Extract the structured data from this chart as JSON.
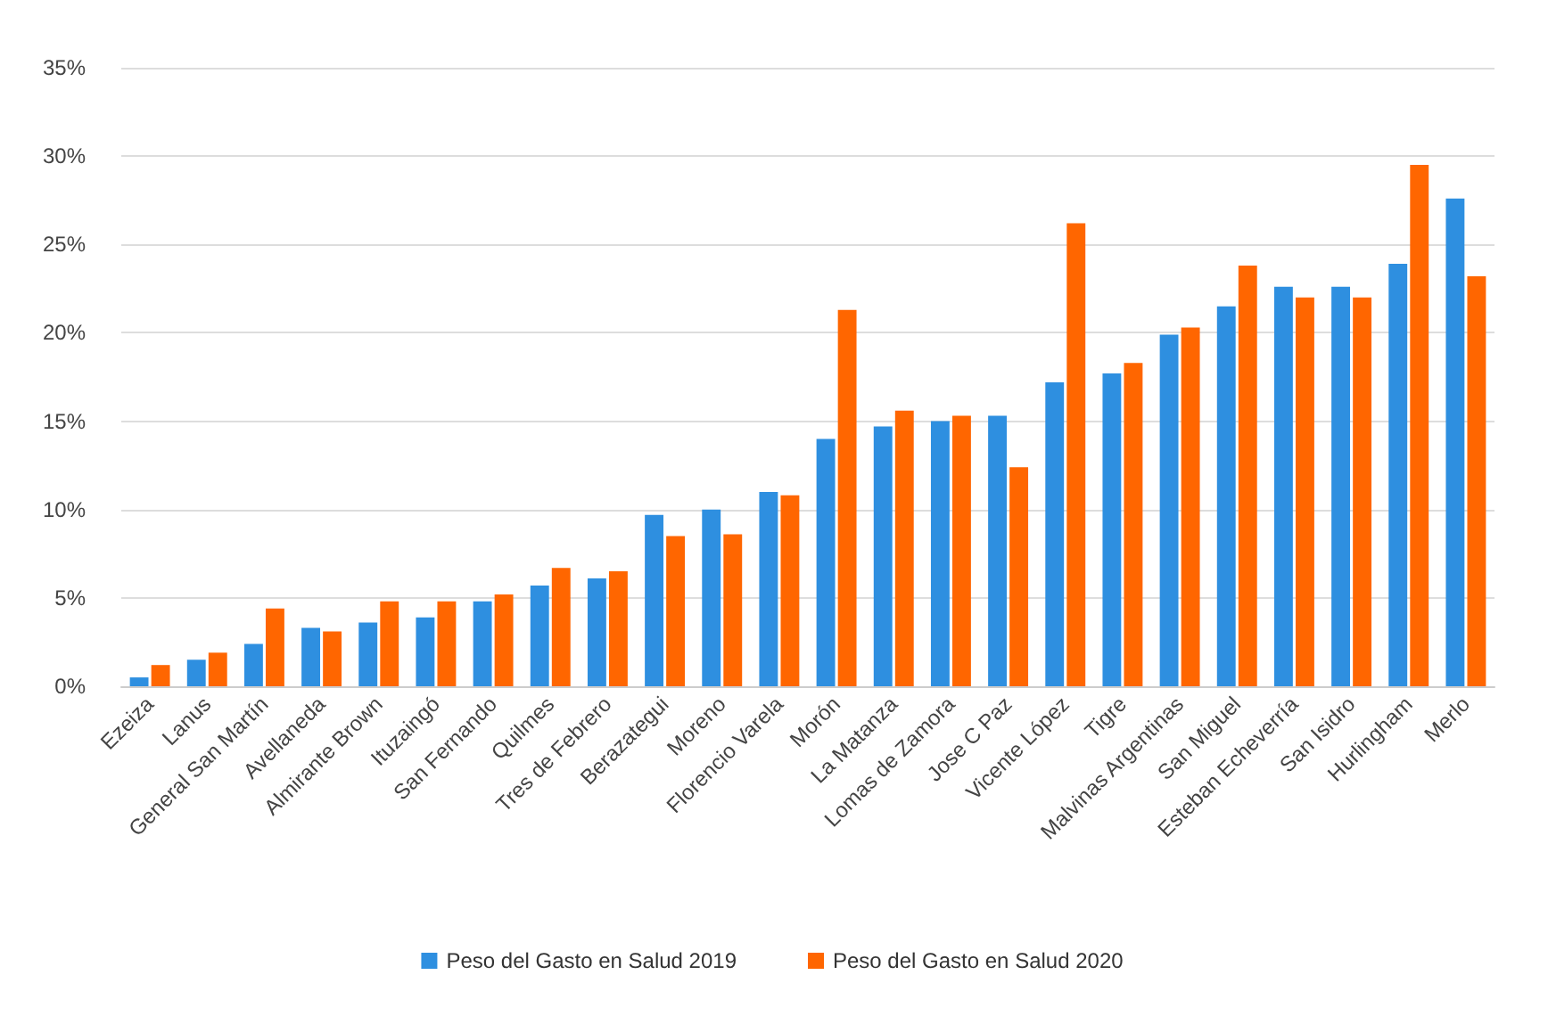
{
  "chart_data": {
    "type": "bar",
    "categories": [
      "Ezeiza",
      "Lanus",
      "General San Martín",
      "Avellaneda",
      "Almirante Brown",
      "Ituzaingó",
      "San Fernando",
      "Quilmes",
      "Tres de Febrero",
      "Berazategui",
      "Moreno",
      "Florencio Varela",
      "Morón",
      "La Matanza",
      "Lomas de Zamora",
      "Jose C Paz",
      "Vicente López",
      "Tigre",
      "Malvinas Argentinas",
      "San Miguel",
      "Esteban Echeverría",
      "San Isidro",
      "Hurlingham",
      "Merlo"
    ],
    "series": [
      {
        "name": "Peso del Gasto en Salud 2019",
        "color": "#2e8fe0",
        "values": [
          0.5,
          1.5,
          2.4,
          3.3,
          3.6,
          3.9,
          4.8,
          5.7,
          6.1,
          9.7,
          10.0,
          11.0,
          14.0,
          14.7,
          15.0,
          15.3,
          17.2,
          17.7,
          19.9,
          21.5,
          22.6,
          22.6,
          23.9,
          27.6
        ]
      },
      {
        "name": "Peso del Gasto en Salud 2020",
        "color": "#ff6600",
        "values": [
          1.2,
          1.9,
          4.4,
          3.1,
          4.8,
          4.8,
          5.2,
          6.7,
          6.5,
          8.5,
          8.6,
          10.8,
          21.3,
          15.6,
          15.3,
          12.4,
          26.2,
          18.3,
          20.3,
          23.8,
          22.0,
          22.0,
          29.5,
          23.2
        ]
      }
    ],
    "ylim": [
      0,
      35
    ],
    "yticks": [
      {
        "value": 0,
        "label": "0%"
      },
      {
        "value": 5,
        "label": "5%"
      },
      {
        "value": 10,
        "label": "10%"
      },
      {
        "value": 15,
        "label": "15%"
      },
      {
        "value": 20,
        "label": "20%"
      },
      {
        "value": 25,
        "label": "25%"
      },
      {
        "value": 30,
        "label": "30%"
      },
      {
        "value": 35,
        "label": "35%"
      }
    ],
    "grid": "y",
    "legend": "bottom"
  }
}
